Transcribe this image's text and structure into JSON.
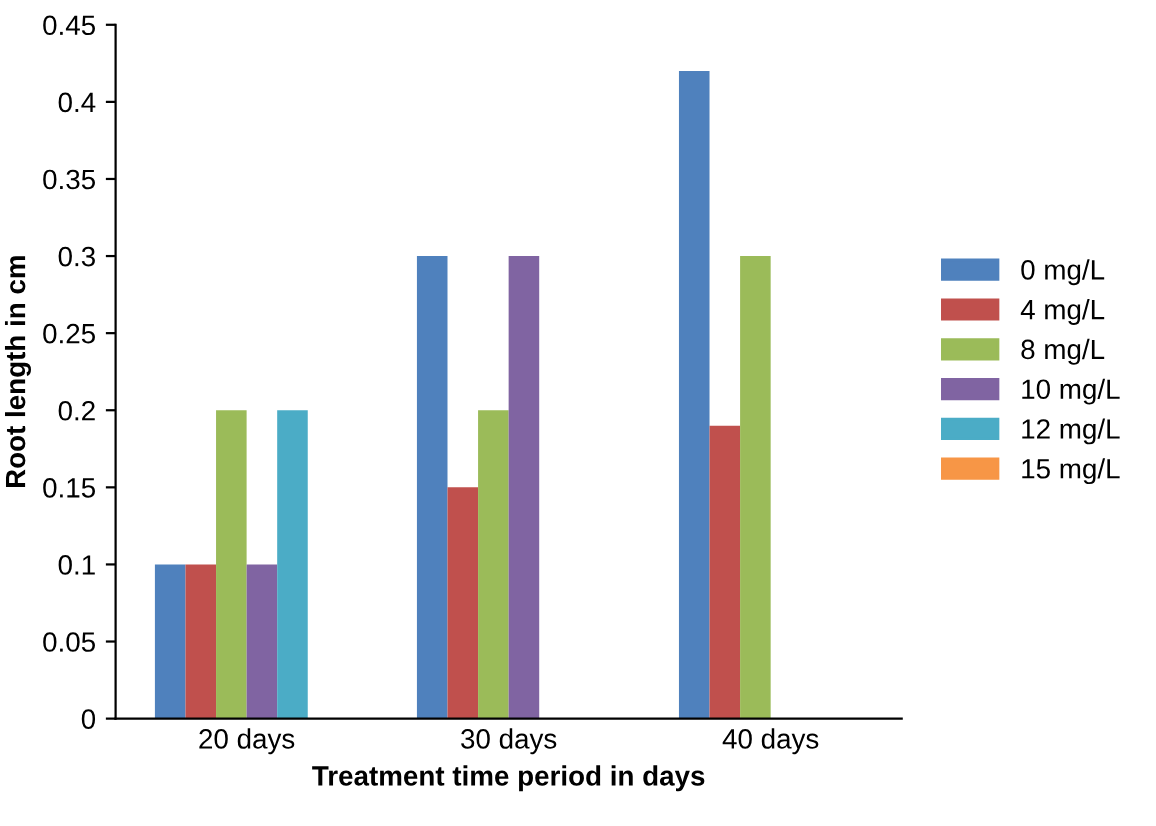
{
  "chart_data": {
    "type": "bar",
    "xlabel": "Treatment time period in days",
    "ylabel": "Root length in cm",
    "categories": [
      "20 days",
      "30 days",
      "40 days"
    ],
    "series": [
      {
        "name": "0 mg/L",
        "color": "#4f81bd",
        "values": [
          0.1,
          0.3,
          0.42
        ]
      },
      {
        "name": "4 mg/L",
        "color": "#c0504d",
        "values": [
          0.1,
          0.15,
          0.19
        ]
      },
      {
        "name": "8 mg/L",
        "color": "#9bbb59",
        "values": [
          0.2,
          0.2,
          0.3
        ]
      },
      {
        "name": "10 mg/L",
        "color": "#8064a2",
        "values": [
          0.1,
          0.3,
          null
        ]
      },
      {
        "name": "12 mg/L",
        "color": "#4bacc6",
        "values": [
          0.2,
          null,
          null
        ]
      },
      {
        "name": "15 mg/L",
        "color": "#f79646",
        "values": [
          null,
          null,
          null
        ]
      }
    ],
    "ylim": [
      0,
      0.45
    ],
    "yticks": [
      0,
      0.05,
      0.1,
      0.15,
      0.2,
      0.25,
      0.3,
      0.35,
      0.4,
      0.45
    ],
    "grid": false,
    "legend": "right"
  }
}
